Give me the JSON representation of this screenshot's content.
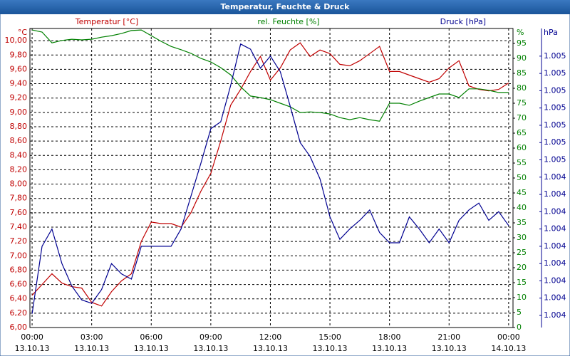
{
  "chart_data": {
    "type": "line",
    "title": "Temperatur, Feuchte & Druck",
    "x": [
      0,
      0.5,
      1,
      1.5,
      2,
      2.5,
      3,
      3.5,
      4,
      4.5,
      5,
      5.5,
      6,
      6.5,
      7,
      7.5,
      8,
      8.5,
      9,
      9.5,
      10,
      10.5,
      11,
      11.5,
      12,
      12.5,
      13,
      13.5,
      14,
      14.5,
      15,
      15.5,
      16,
      16.5,
      17,
      17.5,
      18,
      18.5,
      19,
      19.5,
      20,
      20.5,
      21,
      21.5,
      22,
      22.5,
      23,
      23.5,
      24
    ],
    "xlim": [
      -0.11,
      24.22
    ],
    "xticks": [
      {
        "value": 0,
        "label": "00:00"
      },
      {
        "value": 3,
        "label": "03:00"
      },
      {
        "value": 6,
        "label": "06:00"
      },
      {
        "value": 9,
        "label": "09:00"
      },
      {
        "value": 12,
        "label": "12:00"
      },
      {
        "value": 15,
        "label": "15:00"
      },
      {
        "value": 18,
        "label": "18:00"
      },
      {
        "value": 21,
        "label": "21:00"
      },
      {
        "value": 24,
        "label": "00:00"
      }
    ],
    "xtick_dates": [
      "13.10.13",
      "13.10.13",
      "13.10.13",
      "13.10.13",
      "13.10.13",
      "13.10.13",
      "13.10.13",
      "13.10.13",
      "14.10.13"
    ],
    "grid": true,
    "y_title": "Temperatur [°C]",
    "y_unit": "°C",
    "y_color": "#c00000",
    "ylim": [
      6,
      10.17
    ],
    "yticks": [
      {
        "value": 6,
        "label": "6,00"
      },
      {
        "value": 6.2,
        "label": "6,20"
      },
      {
        "value": 6.4,
        "label": "6,40"
      },
      {
        "value": 6.6,
        "label": "6,60"
      },
      {
        "value": 6.8,
        "label": "6,80"
      },
      {
        "value": 7,
        "label": "7,00"
      },
      {
        "value": 7.2,
        "label": "7,20"
      },
      {
        "value": 7.4,
        "label": "7,40"
      },
      {
        "value": 7.6,
        "label": "7,60"
      },
      {
        "value": 7.8,
        "label": "7,80"
      },
      {
        "value": 8,
        "label": "8,00"
      },
      {
        "value": 8.2,
        "label": "8,20"
      },
      {
        "value": 8.4,
        "label": "8,40"
      },
      {
        "value": 8.6,
        "label": "8,60"
      },
      {
        "value": 8.8,
        "label": "8,80"
      },
      {
        "value": 9,
        "label": "9,00"
      },
      {
        "value": 9.2,
        "label": "9,20"
      },
      {
        "value": 9.4,
        "label": "9,40"
      },
      {
        "value": 9.6,
        "label": "9,60"
      },
      {
        "value": 9.8,
        "label": "9,80"
      },
      {
        "value": 10,
        "label": "10,00"
      }
    ],
    "y2_title": "rel. Feuchte [%]",
    "y2_unit": "%",
    "y2_color": "#008000",
    "y2lim": [
      0,
      100
    ],
    "y2ticks": [
      0,
      5,
      10,
      15,
      20,
      25,
      30,
      35,
      40,
      45,
      50,
      55,
      60,
      65,
      70,
      75,
      80,
      85,
      90,
      95
    ],
    "y3_title": "Druck [hPa]",
    "y3_unit": "hPa",
    "y3_color": "#000090",
    "y3lim": [
      1003.53,
      1005.26
    ],
    "y3ticks": [
      {
        "value": 1003.6,
        "label": "1.004"
      },
      {
        "value": 1003.7,
        "label": "1.004"
      },
      {
        "value": 1003.8,
        "label": "1.004"
      },
      {
        "value": 1003.9,
        "label": "1.004"
      },
      {
        "value": 1004.0,
        "label": "1.004"
      },
      {
        "value": 1004.1,
        "label": "1.004"
      },
      {
        "value": 1004.2,
        "label": "1.004"
      },
      {
        "value": 1004.3,
        "label": "1.004"
      },
      {
        "value": 1004.4,
        "label": "1.004"
      },
      {
        "value": 1004.5,
        "label": "1.005"
      },
      {
        "value": 1004.6,
        "label": "1.005"
      },
      {
        "value": 1004.7,
        "label": "1.005"
      },
      {
        "value": 1004.8,
        "label": "1.005"
      },
      {
        "value": 1004.9,
        "label": "1.005"
      },
      {
        "value": 1005.0,
        "label": "1.005"
      },
      {
        "value": 1005.1,
        "label": "1.005"
      }
    ],
    "series": [
      {
        "name": "Temperatur",
        "color": "#c00000",
        "axis": "y",
        "values": [
          6.45,
          6.6,
          6.75,
          6.62,
          6.57,
          6.55,
          6.35,
          6.3,
          6.5,
          6.65,
          6.75,
          7.2,
          7.47,
          7.45,
          7.45,
          7.4,
          7.6,
          7.9,
          8.15,
          8.6,
          9.1,
          9.32,
          9.57,
          9.78,
          9.45,
          9.62,
          9.87,
          9.97,
          9.78,
          9.87,
          9.82,
          9.67,
          9.65,
          9.72,
          9.82,
          9.92,
          9.57,
          9.57,
          9.52,
          9.47,
          9.42,
          9.47,
          9.62,
          9.72,
          9.37,
          9.32,
          9.3,
          9.32,
          9.41
        ]
      },
      {
        "name": "rel. Feuchte",
        "color": "#008000",
        "axis": "y2",
        "values": [
          99.5,
          98.8,
          95.2,
          96,
          96.4,
          96.2,
          96.4,
          97.1,
          97.6,
          98.3,
          99.3,
          99.5,
          97.6,
          95.7,
          94,
          92.9,
          91.7,
          90,
          88.8,
          86.9,
          84.5,
          80.5,
          77.4,
          76.9,
          76.2,
          75,
          73.8,
          71.9,
          72.1,
          71.9,
          71.4,
          70.2,
          69.5,
          70.2,
          69.5,
          69,
          75,
          75,
          74.3,
          75.7,
          76.9,
          78.1,
          78.1,
          76.9,
          79.8,
          79.8,
          79.3,
          78.6,
          78.6
        ]
      },
      {
        "name": "Druck",
        "color": "#000090",
        "axis": "y3",
        "values": [
          1003.61,
          1004.0,
          1004.1,
          1003.9,
          1003.77,
          1003.69,
          1003.67,
          1003.75,
          1003.9,
          1003.84,
          1003.81,
          1004.0,
          1004.0,
          1004.0,
          1004.0,
          1004.1,
          1004.29,
          1004.48,
          1004.68,
          1004.72,
          1004.93,
          1005.17,
          1005.14,
          1005.03,
          1005.1,
          1005.01,
          1004.81,
          1004.6,
          1004.52,
          1004.39,
          1004.17,
          1004.04,
          1004.1,
          1004.15,
          1004.21,
          1004.08,
          1004.02,
          1004.02,
          1004.17,
          1004.1,
          1004.02,
          1004.1,
          1004.02,
          1004.15,
          1004.21,
          1004.25,
          1004.15,
          1004.2,
          1004.12
        ]
      }
    ]
  }
}
